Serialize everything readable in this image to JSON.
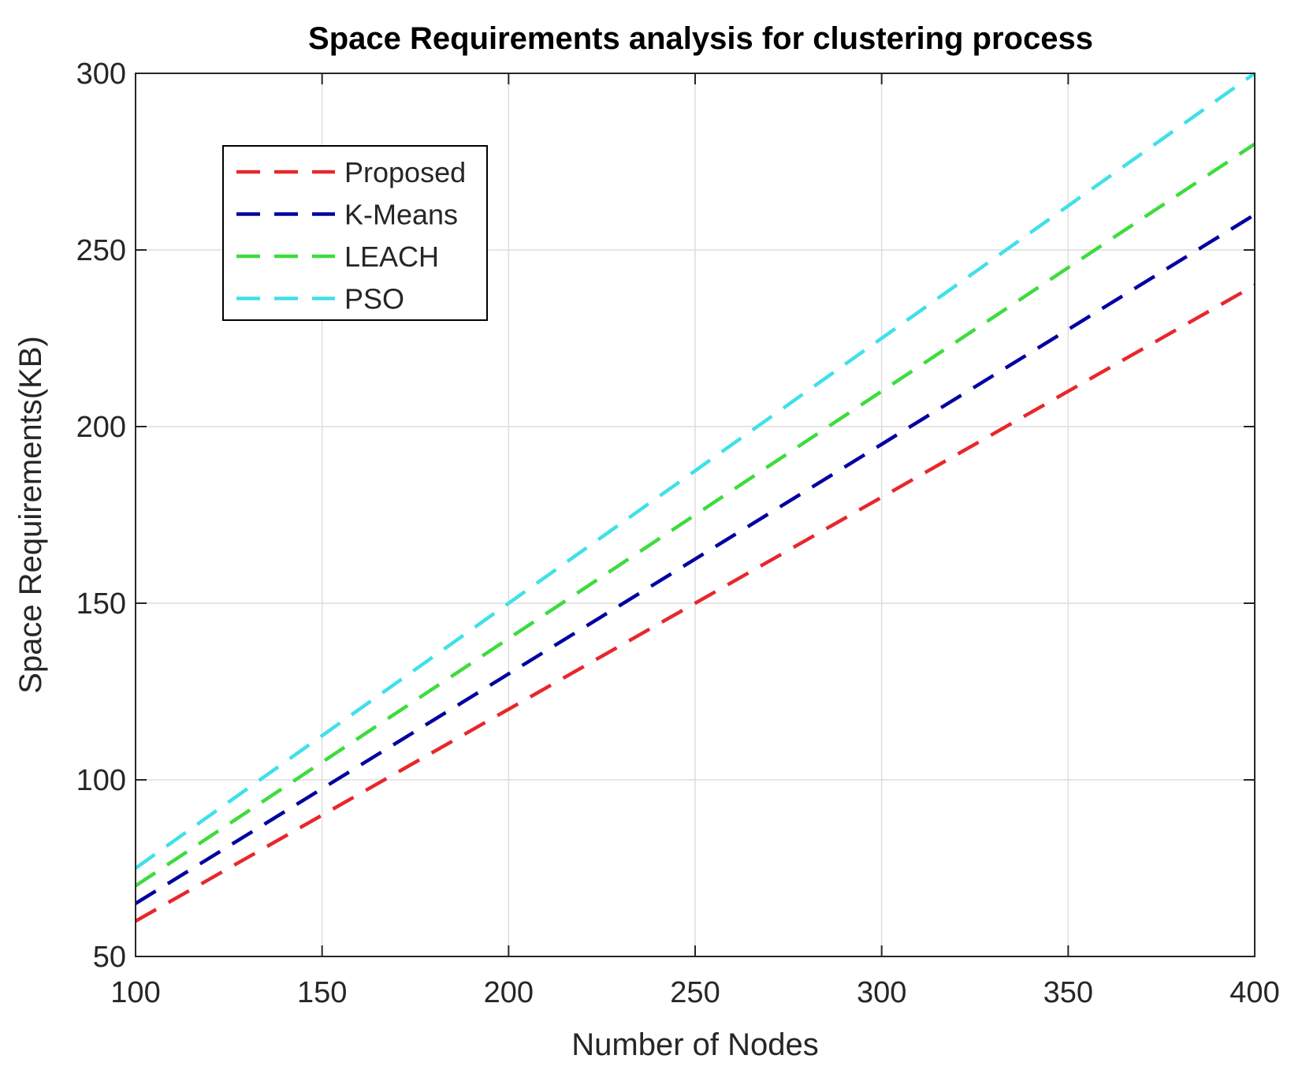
{
  "chart_data": {
    "type": "line",
    "title": "Space Requirements analysis for clustering process",
    "xlabel": "Number of Nodes",
    "ylabel": "Space Requirements(KB)",
    "xlim": [
      100,
      400
    ],
    "ylim": [
      50,
      300
    ],
    "xticks": [
      100,
      150,
      200,
      250,
      300,
      350,
      400
    ],
    "yticks": [
      50,
      100,
      150,
      200,
      250,
      300
    ],
    "grid": true,
    "legend_position": "top-left",
    "line_style": "dashed",
    "x": [
      100,
      150,
      200,
      250,
      300,
      350,
      400
    ],
    "series": [
      {
        "name": "Proposed",
        "color": "#e8272b",
        "values": [
          60,
          90,
          120,
          150,
          180,
          210,
          240
        ]
      },
      {
        "name": "K-Means",
        "color": "#0000a0",
        "values": [
          65,
          97.5,
          130,
          162.5,
          195,
          227.5,
          260
        ]
      },
      {
        "name": "LEACH",
        "color": "#3ddc3d",
        "values": [
          70,
          105,
          140,
          175,
          210,
          245,
          280
        ]
      },
      {
        "name": "PSO",
        "color": "#40e0e8",
        "values": [
          75,
          112.5,
          150,
          187.5,
          225,
          262.5,
          300
        ]
      }
    ]
  }
}
